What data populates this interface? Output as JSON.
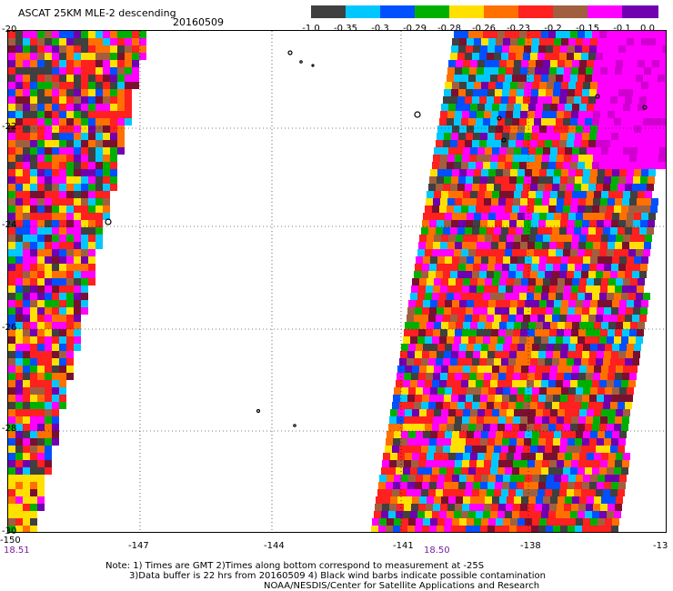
{
  "header": {
    "title": "ASCAT 25KM MLE-2 descending",
    "date": "20160509"
  },
  "colorbar": {
    "labels": [
      "-1.0",
      "-0.35",
      "-0.3",
      "-0.29",
      "-0.28",
      "-0.26",
      "-0.23",
      "-0.2",
      "-0.15",
      "-0.1",
      "0.0"
    ],
    "colors": [
      "#404040",
      "#7a7a7a",
      "#00c8ff",
      "#0050ff",
      "#00b000",
      "#ffe000",
      "#ff7000",
      "#ff2020",
      "#a06040",
      "#ff00ff",
      "#7000b0"
    ]
  },
  "axes": {
    "lon_labels": [
      "-150",
      "-147",
      "-144",
      "-141",
      "-138",
      "-13"
    ],
    "lat_labels": [
      "-20",
      "-22",
      "-24",
      "-26",
      "-28",
      "-30"
    ]
  },
  "times": {
    "left": "18.51",
    "right": "18.50"
  },
  "notes": {
    "line1": "Note: 1) Times are GMT 2)Times along bottom correspond to measurement at -25S",
    "line2": "3)Data buffer is 22 hrs from 20160509 4) Black wind barbs indicate possible contamination",
    "line3": "NOAA/NESDIS/Center for Satellite Applications and Research"
  }
}
